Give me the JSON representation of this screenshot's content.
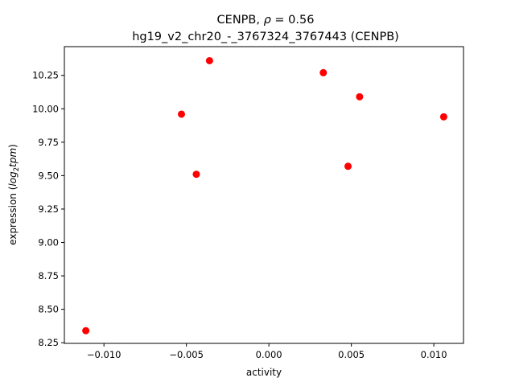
{
  "chart_data": {
    "type": "scatter",
    "title_prefix": "CENPB, ",
    "title_rho_symbol": "ρ",
    "title_rho_value": " = 0.56",
    "subtitle": "hg19_v2_chr20_-_3767324_3767443 (CENPB)",
    "xlabel": "activity",
    "ylabel_prefix": "expression (",
    "ylabel_log": "log",
    "ylabel_sub": "2",
    "ylabel_tpm": "tpm",
    "ylabel_suffix": ")",
    "xlim": [
      -0.0124,
      0.0118
    ],
    "ylim": [
      8.245,
      10.465
    ],
    "x_ticks": [
      -0.01,
      -0.005,
      0.0,
      0.005,
      0.01
    ],
    "x_tick_labels": [
      "−0.010",
      "−0.005",
      "0.000",
      "0.005",
      "0.010"
    ],
    "y_ticks": [
      8.25,
      8.5,
      8.75,
      9.0,
      9.25,
      9.5,
      9.75,
      10.0,
      10.25
    ],
    "y_tick_labels": [
      "8.25",
      "8.50",
      "8.75",
      "9.00",
      "9.25",
      "9.50",
      "9.75",
      "10.00",
      "10.25"
    ],
    "grid": false,
    "marker_color": "#ff0000",
    "points": [
      {
        "x": -0.0111,
        "y": 8.34
      },
      {
        "x": -0.0053,
        "y": 9.96
      },
      {
        "x": -0.0044,
        "y": 9.51
      },
      {
        "x": -0.0036,
        "y": 10.36
      },
      {
        "x": 0.0033,
        "y": 10.27
      },
      {
        "x": 0.0048,
        "y": 9.57
      },
      {
        "x": 0.0055,
        "y": 10.09
      },
      {
        "x": 0.0106,
        "y": 9.94
      }
    ]
  }
}
